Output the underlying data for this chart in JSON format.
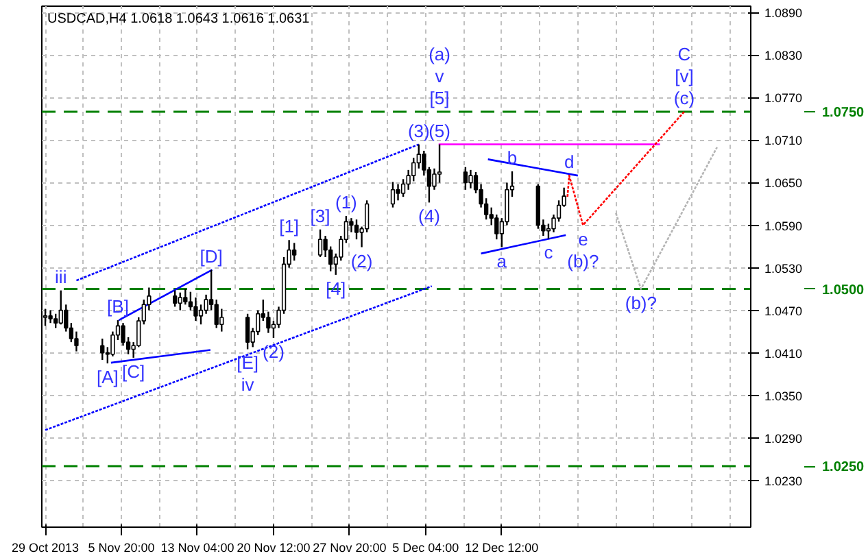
{
  "chart_data": {
    "type": "candlestick",
    "title": "USDCAD,H4  1.0618 1.0643 1.0616 1.0631",
    "x": [
      "2013-10-29T12:00",
      "2013-10-30T00:00",
      "2013-10-30T12:00",
      "2013-10-31T00:00",
      "2013-10-31T12:00",
      "2013-11-01T00:00",
      "2013-11-01T12:00",
      "2013-11-04T00:00",
      "2013-11-04T12:00",
      "2013-11-05T00:00",
      "2013-11-05T12:00",
      "2013-11-06T00:00",
      "2013-11-06T12:00",
      "2013-11-07T00:00",
      "2013-11-07T12:00",
      "2013-11-08T00:00",
      "2013-11-08T12:00",
      "2013-11-11T00:00",
      "2013-11-11T12:00",
      "2013-11-12T00:00",
      "2013-11-12T12:00",
      "2013-11-13T00:00",
      "2013-11-13T12:00",
      "2013-11-14T00:00",
      "2013-11-14T12:00",
      "2013-11-15T00:00",
      "2013-11-15T12:00",
      "2013-11-18T00:00",
      "2013-11-18T12:00",
      "2013-11-19T00:00",
      "2013-11-19T12:00",
      "2013-11-20T00:00",
      "2013-11-20T12:00",
      "2013-11-21T00:00",
      "2013-11-21T12:00",
      "2013-11-22T00:00",
      "2013-11-22T12:00",
      "2013-11-25T00:00",
      "2013-11-25T12:00",
      "2013-11-26T00:00",
      "2013-11-26T12:00",
      "2013-11-27T00:00",
      "2013-11-27T12:00",
      "2013-11-28T00:00",
      "2013-11-28T12:00",
      "2013-11-29T00:00",
      "2013-11-29T12:00",
      "2013-12-02T00:00",
      "2013-12-02T12:00",
      "2013-12-03T00:00",
      "2013-12-03T12:00",
      "2013-12-04T00:00",
      "2013-12-04T12:00",
      "2013-12-05T00:00",
      "2013-12-05T12:00",
      "2013-12-06T00:00",
      "2013-12-06T12:00",
      "2013-12-09T00:00",
      "2013-12-09T12:00",
      "2013-12-10T00:00",
      "2013-12-10T12:00",
      "2013-12-11T00:00",
      "2013-12-11T12:00",
      "2013-12-12T00:00",
      "2013-12-12T12:00",
      "2013-12-13T00:00",
      "2013-12-13T12:00",
      "2013-12-16T00:00",
      "2013-12-16T12:00",
      "2013-12-17T00:00",
      "2013-12-17T12:00",
      "2013-12-18T00:00",
      "2013-12-18T12:00"
    ],
    "ohlc": [
      [
        1.046,
        1.0472,
        1.0448,
        1.0462
      ],
      [
        1.0462,
        1.047,
        1.0452,
        1.0458
      ],
      [
        1.0458,
        1.0465,
        1.0445,
        1.0452
      ],
      [
        1.0452,
        1.0498,
        1.045,
        1.047
      ],
      [
        1.047,
        1.0478,
        1.044,
        1.0445
      ],
      [
        1.0445,
        1.0452,
        1.0425,
        1.043
      ],
      [
        1.043,
        1.044,
        1.0412,
        1.042
      ],
      [
        1.042,
        1.043,
        1.04,
        1.041
      ],
      [
        1.041,
        1.0418,
        1.0395,
        1.0408
      ],
      [
        1.0408,
        1.044,
        1.0405,
        1.0435
      ],
      [
        1.0435,
        1.0456,
        1.0428,
        1.0448
      ],
      [
        1.0448,
        1.0452,
        1.042,
        1.0425
      ],
      [
        1.0425,
        1.0432,
        1.0408,
        1.0415
      ],
      [
        1.0415,
        1.0425,
        1.0403,
        1.042
      ],
      [
        1.042,
        1.046,
        1.0418,
        1.0455
      ],
      [
        1.0455,
        1.0485,
        1.045,
        1.0478
      ],
      [
        1.0478,
        1.0502,
        1.047,
        1.049
      ],
      [
        1.049,
        1.0498,
        1.0475,
        1.048
      ],
      [
        1.048,
        1.0495,
        1.047,
        1.0488
      ],
      [
        1.0488,
        1.05,
        1.0478,
        1.0482
      ],
      [
        1.0482,
        1.0496,
        1.047,
        1.0475
      ],
      [
        1.0475,
        1.0488,
        1.0455,
        1.0462
      ],
      [
        1.0462,
        1.0478,
        1.045,
        1.047
      ],
      [
        1.047,
        1.0492,
        1.0465,
        1.0485
      ],
      [
        1.0485,
        1.0527,
        1.047,
        1.0478
      ],
      [
        1.0478,
        1.0485,
        1.0445,
        1.045
      ],
      [
        1.045,
        1.0472,
        1.044,
        1.046
      ],
      [
        1.046,
        1.0465,
        1.0415,
        1.0425
      ],
      [
        1.0425,
        1.0445,
        1.0418,
        1.044
      ],
      [
        1.044,
        1.047,
        1.0435,
        1.0465
      ],
      [
        1.0465,
        1.0485,
        1.0455,
        1.046
      ],
      [
        1.046,
        1.0468,
        1.0438,
        1.0445
      ],
      [
        1.0445,
        1.0455,
        1.0431,
        1.045
      ],
      [
        1.045,
        1.0475,
        1.0445,
        1.047
      ],
      [
        1.047,
        1.0545,
        1.0465,
        1.0535
      ],
      [
        1.0535,
        1.0569,
        1.053,
        1.0555
      ],
      [
        1.0555,
        1.0565,
        1.054,
        1.0548
      ],
      [
        1.0548,
        1.0584,
        1.0545,
        1.057
      ],
      [
        1.057,
        1.0575,
        1.0545,
        1.0555
      ],
      [
        1.0555,
        1.056,
        1.0525,
        1.0535
      ],
      [
        1.0535,
        1.055,
        1.052,
        1.0545
      ],
      [
        1.0545,
        1.0575,
        1.054,
        1.057
      ],
      [
        1.057,
        1.0603,
        1.0565,
        1.0595
      ],
      [
        1.0595,
        1.06,
        1.058,
        1.059
      ],
      [
        1.059,
        1.0598,
        1.057,
        1.058
      ],
      [
        1.058,
        1.0588,
        1.0559,
        1.0585
      ],
      [
        1.0585,
        1.0625,
        1.058,
        1.062
      ],
      [
        1.062,
        1.0651,
        1.0615,
        1.064
      ],
      [
        1.064,
        1.0648,
        1.0625,
        1.0635
      ],
      [
        1.0635,
        1.0655,
        1.063,
        1.0648
      ],
      [
        1.0648,
        1.0668,
        1.064,
        1.066
      ],
      [
        1.066,
        1.0685,
        1.0652,
        1.0678
      ],
      [
        1.0678,
        1.0704,
        1.067,
        1.069
      ],
      [
        1.069,
        1.0695,
        1.066,
        1.0668
      ],
      [
        1.0668,
        1.0672,
        1.0622,
        1.0645
      ],
      [
        1.0645,
        1.067,
        1.064,
        1.0662
      ],
      [
        1.0662,
        1.0704,
        1.065,
        1.0665
      ],
      [
        1.0665,
        1.0672,
        1.064,
        1.065
      ],
      [
        1.065,
        1.0668,
        1.0642,
        1.066
      ],
      [
        1.066,
        1.0665,
        1.0635,
        1.064
      ],
      [
        1.064,
        1.0648,
        1.0615,
        1.062
      ],
      [
        1.062,
        1.0628,
        1.0598,
        1.0605
      ],
      [
        1.0605,
        1.0615,
        1.059,
        1.06
      ],
      [
        1.06,
        1.0605,
        1.057,
        1.0578
      ],
      [
        1.0578,
        1.06,
        1.0559,
        1.0595
      ],
      [
        1.0595,
        1.065,
        1.059,
        1.064
      ],
      [
        1.064,
        1.0666,
        1.063,
        1.0645
      ],
      [
        1.0645,
        1.0648,
        1.0585,
        1.059
      ],
      [
        1.059,
        1.0598,
        1.0575,
        1.0582
      ],
      [
        1.0582,
        1.0592,
        1.0571,
        1.0585
      ],
      [
        1.0585,
        1.0605,
        1.058,
        1.06
      ],
      [
        1.06,
        1.0625,
        1.0595,
        1.0618
      ],
      [
        1.0618,
        1.0643,
        1.0616,
        1.0631
      ]
    ],
    "color": "#000000",
    "series": [
      {
        "type": "line",
        "color": "#0000ff",
        "line_style": "dotted",
        "x": [
          "2013-11-01T12:00",
          "2013-12-04T12:00"
        ],
        "values": [
          1.0512,
          1.0704
        ]
      },
      {
        "type": "line",
        "color": "#0000ff",
        "line_style": "dotted",
        "x": [
          "2013-10-29T12:00",
          "2013-12-05T18:00"
        ],
        "values": [
          1.0301,
          1.0504
        ]
      },
      {
        "type": "line",
        "color": "#0000ff",
        "line_style": "solid",
        "x": [
          "2013-11-04T20:00",
          "2013-11-14T10:00"
        ],
        "values": [
          1.0396,
          1.0414
        ]
      },
      {
        "type": "line",
        "color": "#0000ff",
        "line_style": "solid",
        "x": [
          "2013-11-05T14:00",
          "2013-11-14T14:00"
        ],
        "values": [
          1.0456,
          1.0527
        ]
      },
      {
        "type": "line",
        "color": "#0000ff",
        "line_style": "solid",
        "x": [
          "2013-12-11T04:00",
          "2013-12-19T20:00"
        ],
        "values": [
          1.0683,
          1.066
        ]
      },
      {
        "type": "line",
        "color": "#0000ff",
        "line_style": "solid",
        "x": [
          "2013-12-10T12:00",
          "2013-12-18T16:00"
        ],
        "values": [
          1.055,
          1.0576
        ]
      },
      {
        "type": "line",
        "color": "#ff00ff",
        "line_style": "solid",
        "x": [
          "2013-12-06T10:00",
          "2013-12-27T18:00"
        ],
        "values": [
          1.0704,
          1.0704
        ]
      },
      {
        "type": "line",
        "color": "#ff0000",
        "line_style": "dotted",
        "x": [
          "2013-12-18T20:00",
          "2013-12-19T00:00",
          "2013-12-20T08:00",
          "2013-12-30T02:00"
        ],
        "values": [
          1.063,
          1.066,
          1.059,
          1.075
        ]
      },
      {
        "type": "line",
        "color": "#b4b4b4",
        "line_style": "dotted",
        "x": [
          "2013-12-23T12:00",
          "2013-12-25T22:00",
          "2014-01-02T06:00"
        ],
        "values": [
          1.0607,
          1.05,
          1.07
        ]
      }
    ],
    "xlim": [
      "2013-10-29T04:00",
      "2014-01-05T12:00"
    ],
    "xticks": [
      {
        "value": "2013-10-29T12:00",
        "label": "29 Oct 2013"
      },
      {
        "value": "2013-11-05T20:00",
        "label": "5 Nov 20:00"
      },
      {
        "value": "2013-11-13T04:00",
        "label": "13 Nov 04:00"
      },
      {
        "value": "2013-11-20T12:00",
        "label": "20 Nov 12:00"
      },
      {
        "value": "2013-11-27T20:00",
        "label": "27 Nov 20:00"
      },
      {
        "value": "2013-12-05T04:00",
        "label": "5 Dec 04:00"
      },
      {
        "value": "2013-12-12T12:00",
        "label": "12 Dec 12:00"
      }
    ],
    "ylim": [
      1.0164,
      1.0899
    ],
    "yticks": [
      {
        "value": 1.023,
        "label": "1.0230"
      },
      {
        "value": 1.029,
        "label": "1.0290"
      },
      {
        "value": 1.035,
        "label": "1.0350"
      },
      {
        "value": 1.041,
        "label": "1.0410"
      },
      {
        "value": 1.047,
        "label": "1.0470"
      },
      {
        "value": 1.053,
        "label": "1.0530"
      },
      {
        "value": 1.059,
        "label": "1.0590"
      },
      {
        "value": 1.065,
        "label": "1.0650"
      },
      {
        "value": 1.071,
        "label": "1.0710"
      },
      {
        "value": 1.077,
        "label": "1.0770"
      },
      {
        "value": 1.083,
        "label": "1.0830"
      },
      {
        "value": 1.089,
        "label": "1.0890"
      }
    ],
    "grid": true,
    "ref_lines": [
      {
        "axis": "y",
        "value": 1.075,
        "label": "1.0750",
        "color": "#008000",
        "line_style": "dashed"
      },
      {
        "axis": "y",
        "value": 1.05,
        "label": "1.0500",
        "color": "#008000",
        "line_style": "dashed"
      },
      {
        "axis": "y",
        "value": 1.025,
        "label": "1.0250",
        "color": "#008000",
        "line_style": "dashed"
      }
    ],
    "annotations": [
      {
        "text": "iii",
        "x": "2013-10-31T00:00",
        "y": 1.0498
      },
      {
        "text": "[A]",
        "x": "2013-11-04T12:00",
        "y": 1.0395
      },
      {
        "text": "[B]",
        "x": "2013-11-05T12:00",
        "y": 1.0456
      },
      {
        "text": "[C]",
        "x": "2013-11-07T00:00",
        "y": 1.0403
      },
      {
        "text": "[D]",
        "x": "2013-11-14T12:00",
        "y": 1.0527
      },
      {
        "text": "[E]",
        "x": "2013-11-18T00:00",
        "y": 1.0415
      },
      {
        "text": "iv",
        "x": "2013-11-18T00:00",
        "y": 1.0415
      },
      {
        "text": "(2)",
        "x": "2013-11-20T12:00",
        "y": 1.0431
      },
      {
        "text": "[1]",
        "x": "2013-11-22T00:00",
        "y": 1.0569
      },
      {
        "text": "[3]",
        "x": "2013-11-25T00:00",
        "y": 1.0584
      },
      {
        "text": "[4]",
        "x": "2013-11-26T12:00",
        "y": 1.052
      },
      {
        "text": "(1)",
        "x": "2013-11-27T12:00",
        "y": 1.0603
      },
      {
        "text": "(2)",
        "x": "2013-11-29T00:00",
        "y": 1.0559
      },
      {
        "text": "(3)",
        "x": "2013-12-04T12:00",
        "y": 1.0704
      },
      {
        "text": "(4)",
        "x": "2013-12-05T12:00",
        "y": 1.0622
      },
      {
        "text": "(5)",
        "x": "2013-12-06T12:00",
        "y": 1.0704
      },
      {
        "text": "[5]",
        "x": "2013-12-06T12:00",
        "y": 1.075
      },
      {
        "text": "v",
        "x": "2013-12-06T12:00",
        "y": 1.075
      },
      {
        "text": "(a)",
        "x": "2013-12-06T12:00",
        "y": 1.075
      },
      {
        "text": "a",
        "x": "2013-12-12T12:00",
        "y": 1.0559
      },
      {
        "text": "b",
        "x": "2013-12-13T12:00",
        "y": 1.0666
      },
      {
        "text": "c",
        "x": "2013-12-17T00:00",
        "y": 1.0571
      },
      {
        "text": "d",
        "x": "2013-12-19T00:00",
        "y": 1.066
      },
      {
        "text": "e",
        "x": "2013-12-20T08:00",
        "y": 1.059
      },
      {
        "text": "(b)?",
        "x": "2013-12-20T08:00",
        "y": 1.059
      },
      {
        "text": "(b)?",
        "x": "2013-12-25T22:00",
        "y": 1.05
      },
      {
        "text": "(c)",
        "x": "2013-12-30T02:00",
        "y": 1.075
      },
      {
        "text": "[v]",
        "x": "2013-12-30T02:00",
        "y": 1.075
      },
      {
        "text": "C",
        "x": "2013-12-30T02:00",
        "y": 1.075
      }
    ]
  }
}
